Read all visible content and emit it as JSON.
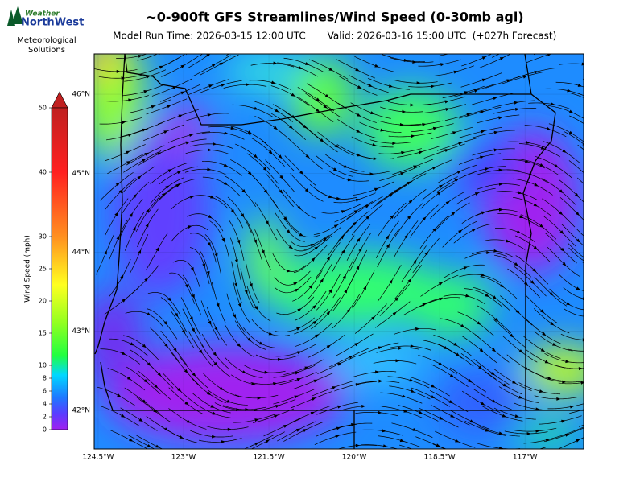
{
  "logo": {
    "brand_top": "Weather",
    "brand_bottom": "NorthWest",
    "caption_line1": "Meteorological",
    "caption_line2": "Solutions"
  },
  "header": {
    "title": "~0-900ft GFS Streamlines/Wind Speed (0-30mb agl)",
    "model_run": "Model Run Time: 2026-03-15 12:00 UTC",
    "valid": "Valid: 2026-03-16 15:00 UTC  (+027h Forecast)"
  },
  "colorbar": {
    "label": "Wind Speed (mph)",
    "lim": [
      0,
      50
    ],
    "ticks": [
      0,
      2,
      4,
      6,
      8,
      10,
      15,
      20,
      25,
      30,
      40,
      50
    ]
  },
  "map": {
    "xlim": [
      -124.57,
      -115.97
    ],
    "ylim": [
      41.51,
      46.51
    ],
    "xticks": [
      {
        "value": -124.5,
        "label": "124.5°W"
      },
      {
        "value": -123,
        "label": "123°W"
      },
      {
        "value": -121.5,
        "label": "121.5°W"
      },
      {
        "value": -120,
        "label": "120°W"
      },
      {
        "value": -118.5,
        "label": "118.5°W"
      },
      {
        "value": -117,
        "label": "117°W"
      }
    ],
    "yticks": [
      {
        "value": 42,
        "label": "42°N"
      },
      {
        "value": 43,
        "label": "43°N"
      },
      {
        "value": 44,
        "label": "44°N"
      },
      {
        "value": 45,
        "label": "45°N"
      },
      {
        "value": 46,
        "label": "46°N"
      }
    ]
  }
}
